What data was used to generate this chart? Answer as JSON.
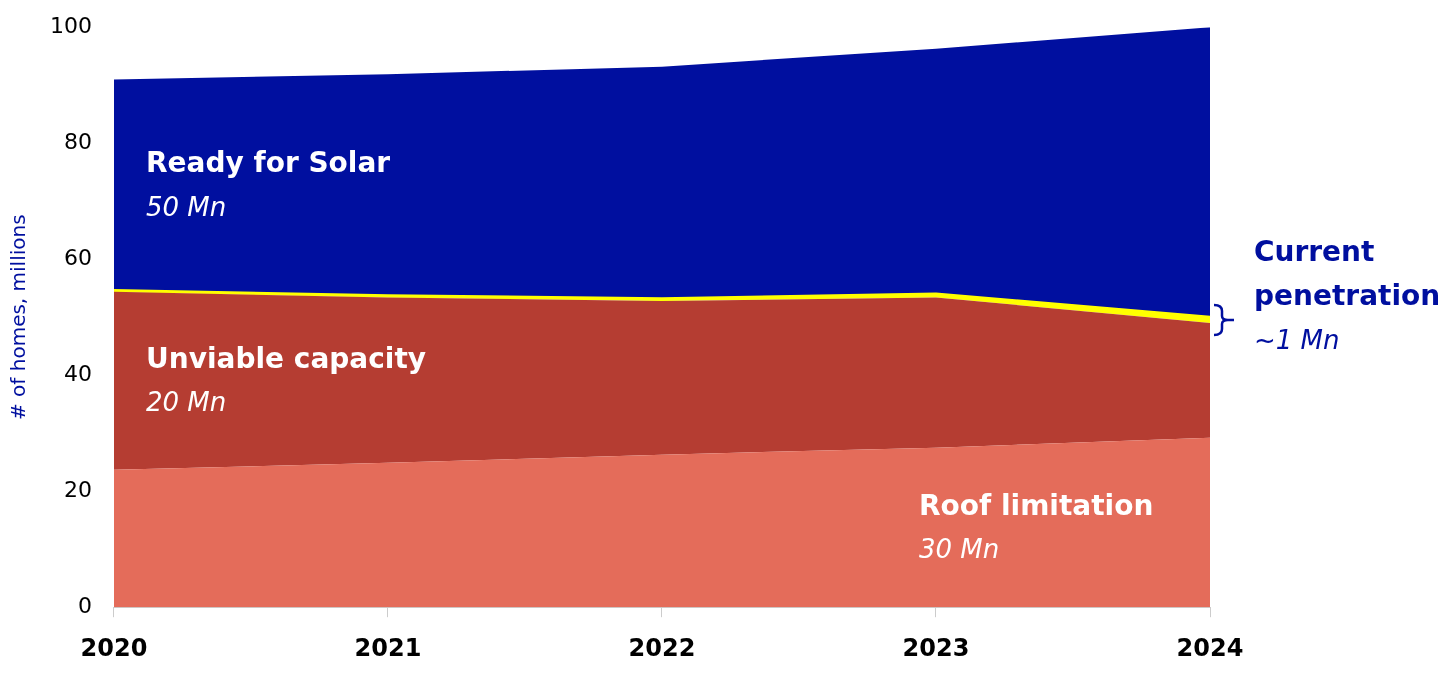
{
  "chart_data": {
    "type": "area",
    "stacked": true,
    "ylabel": "# of homes, millions",
    "categories": [
      "2020",
      "2021",
      "2022",
      "2023",
      "2024"
    ],
    "series": [
      {
        "name": "Roof limitation",
        "color": "#e46c5a",
        "values": [
          23.7,
          24.9,
          26.3,
          27.5,
          29.2
        ]
      },
      {
        "name": "Unviable capacity",
        "color": "#b53d32",
        "values": [
          30.7,
          28.5,
          26.5,
          25.9,
          19.8
        ]
      },
      {
        "name": "Current penetration",
        "color": "#ffff00",
        "values": [
          0.2,
          0.3,
          0.4,
          0.6,
          1.0
        ]
      },
      {
        "name": "Ready for Solar",
        "color": "#000f9f",
        "values": [
          36.4,
          38.2,
          40.0,
          42.3,
          50.0
        ]
      }
    ],
    "ylim": [
      0,
      100
    ],
    "yticks": [
      0,
      20,
      40,
      60,
      80,
      100
    ],
    "grid": false,
    "legend": false,
    "annotations": [
      "30 Mn",
      "20 Mn",
      "~1 Mn",
      "50 Mn"
    ]
  }
}
